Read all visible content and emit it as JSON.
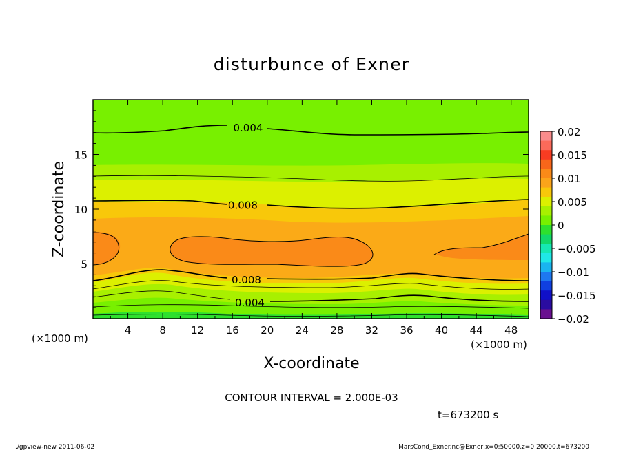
{
  "chart_data": {
    "type": "heatmap",
    "title": "disturbunce of Exner",
    "xlabel": "X-coordinate",
    "ylabel": "Z-coordinate",
    "x_unit_left": "(×1000 m)",
    "x_unit_right": "(×1000 m)",
    "xlim": [
      0,
      50
    ],
    "ylim": [
      0,
      20
    ],
    "x_ticks": [
      4,
      8,
      12,
      16,
      20,
      24,
      28,
      32,
      36,
      40,
      44,
      48
    ],
    "y_ticks": [
      5,
      10,
      15
    ],
    "contour_labels": [
      {
        "text": "0.004",
        "x": 17.8,
        "z": 17.5
      },
      {
        "text": "0.008",
        "x": 17.2,
        "z": 10.4
      },
      {
        "text": "0.008",
        "x": 17.6,
        "z": 3.6
      },
      {
        "text": "0.004",
        "x": 18.0,
        "z": 1.5
      }
    ],
    "colorbar": {
      "ticks": [
        "0.02",
        "0.015",
        "0.01",
        "0.005",
        "0",
        "−0.005",
        "−0.01",
        "−0.015",
        "−0.02"
      ],
      "levels": [
        {
          "min": 0.018,
          "max": 0.02,
          "color": "#fa8c8c"
        },
        {
          "min": 0.016,
          "max": 0.018,
          "color": "#fb6a5a"
        },
        {
          "min": 0.014,
          "max": 0.016,
          "color": "#f83c22"
        },
        {
          "min": 0.012,
          "max": 0.014,
          "color": "#f8661a"
        },
        {
          "min": 0.01,
          "max": 0.012,
          "color": "#fa8a18"
        },
        {
          "min": 0.008,
          "max": 0.01,
          "color": "#fba41a"
        },
        {
          "min": 0.006,
          "max": 0.008,
          "color": "#f8c80a"
        },
        {
          "min": 0.004,
          "max": 0.006,
          "color": "#dcf000"
        },
        {
          "min": 0.002,
          "max": 0.004,
          "color": "#a8f000"
        },
        {
          "min": 0.0,
          "max": 0.002,
          "color": "#78f000"
        },
        {
          "min": -0.002,
          "max": 0.0,
          "color": "#2ee02e"
        },
        {
          "min": -0.004,
          "max": -0.002,
          "color": "#12d86a"
        },
        {
          "min": -0.006,
          "max": -0.004,
          "color": "#16e8b4"
        },
        {
          "min": -0.008,
          "max": -0.006,
          "color": "#20e8e8"
        },
        {
          "min": -0.01,
          "max": -0.008,
          "color": "#1ab4f0"
        },
        {
          "min": -0.012,
          "max": -0.01,
          "color": "#1e78f0"
        },
        {
          "min": -0.014,
          "max": -0.012,
          "color": "#1040e0"
        },
        {
          "min": -0.016,
          "max": -0.014,
          "color": "#1010c8"
        },
        {
          "min": -0.018,
          "max": -0.016,
          "color": "#2a0ca0"
        },
        {
          "min": -0.02,
          "max": -0.018,
          "color": "#6a1090"
        }
      ]
    }
  },
  "contour_interval_text": "CONTOUR INTERVAL = 2.000E-03",
  "time_text": "t=673200 s",
  "footer_left": "./gpview-new   2011-06-02",
  "footer_right": "MarsCond_Exner.nc@Exner,x=0:50000,z=0:20000,t=673200"
}
